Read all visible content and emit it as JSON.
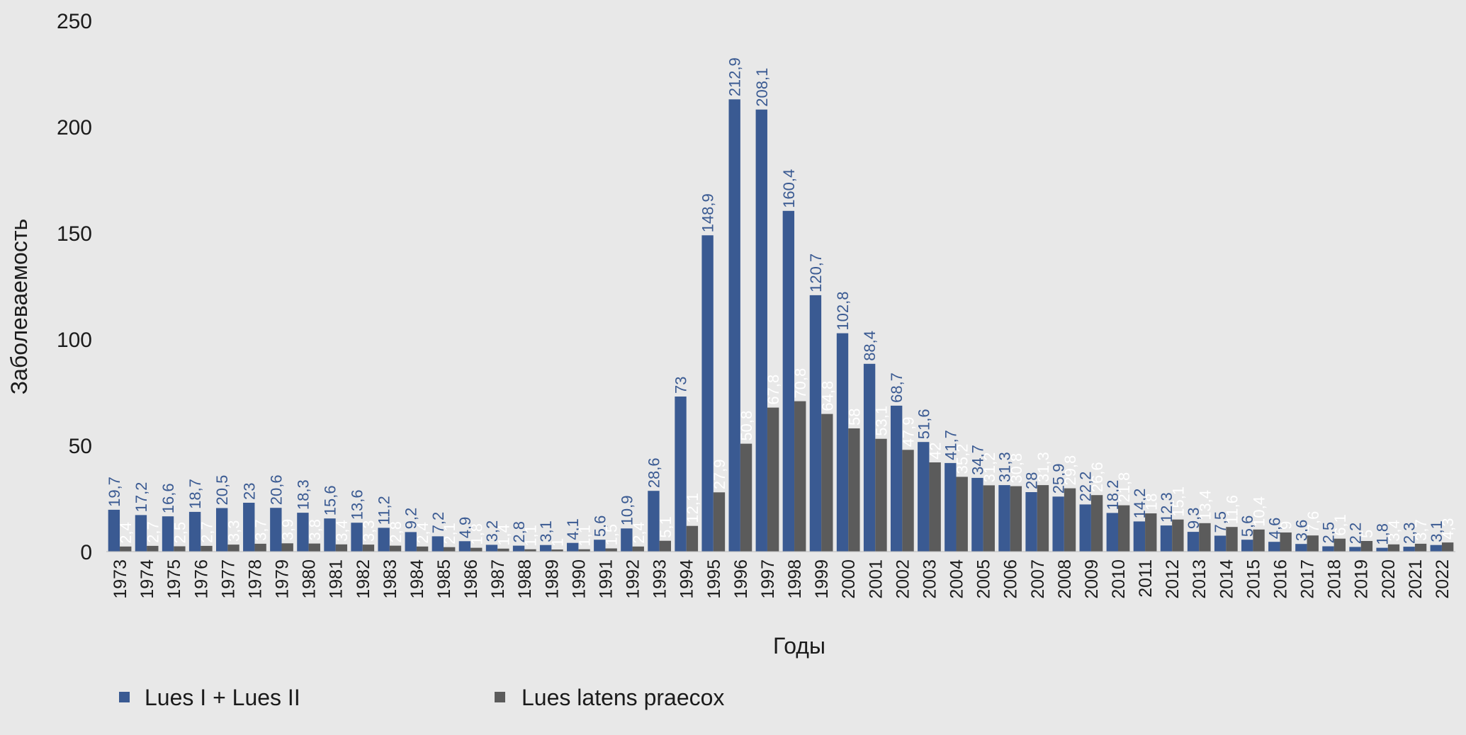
{
  "chart_data": {
    "type": "bar",
    "title": "",
    "xlabel": "Годы",
    "ylabel": "Заболеваемость",
    "ylim": [
      0,
      250
    ],
    "yticks": [
      0,
      50,
      100,
      150,
      200,
      250
    ],
    "grid": false,
    "legend_position": "bottom-left",
    "categories": [
      "1973",
      "1974",
      "1975",
      "1976",
      "1977",
      "1978",
      "1979",
      "1980",
      "1981",
      "1982",
      "1983",
      "1984",
      "1985",
      "1986",
      "1987",
      "1988",
      "1989",
      "1990",
      "1991",
      "1992",
      "1993",
      "1994",
      "1995",
      "1996",
      "1997",
      "1998",
      "1999",
      "2000",
      "2001",
      "2002",
      "2003",
      "2004",
      "2005",
      "2006",
      "2007",
      "2008",
      "2009",
      "2010",
      "2011",
      "2012",
      "2013",
      "2014",
      "2015",
      "2016",
      "2017",
      "2018",
      "2019",
      "2020",
      "2021",
      "2022"
    ],
    "series": [
      {
        "name": "Lues I + Lues II",
        "color": "#3a5a92",
        "label_color": "#3a5a92",
        "values": [
          19.7,
          17.2,
          16.6,
          18.7,
          20.5,
          23,
          20.6,
          18.3,
          15.6,
          13.6,
          11.2,
          9.2,
          7.2,
          4.9,
          3.2,
          2.8,
          3.1,
          4.1,
          5.6,
          10.9,
          28.6,
          73,
          148.9,
          212.9,
          208.1,
          160.4,
          120.7,
          102.8,
          88.4,
          68.7,
          51.6,
          41.7,
          34.7,
          31.3,
          28,
          25.9,
          22.2,
          18.2,
          14.2,
          12.3,
          9.3,
          7.5,
          5.6,
          4.6,
          3.6,
          2.5,
          2.2,
          1.8,
          2.3,
          3.1
        ],
        "labels": [
          "19,7",
          "17,2",
          "16,6",
          "18,7",
          "20,5",
          "23",
          "20,6",
          "18,3",
          "15,6",
          "13,6",
          "11,2",
          "9,2",
          "7,2",
          "4,9",
          "3,2",
          "2,8",
          "3,1",
          "4,1",
          "5,6",
          "10,9",
          "28,6",
          "73",
          "148,9",
          "212,9",
          "208,1",
          "160,4",
          "120,7",
          "102,8",
          "88,4",
          "68,7",
          "51,6",
          "41,7",
          "34,7",
          "31,3",
          "28",
          "25,9",
          "22,2",
          "18,2",
          "14,2",
          "12,3",
          "9,3",
          "7,5",
          "5,6",
          "4,6",
          "3,6",
          "2,5",
          "2,2",
          "1,8",
          "2,3",
          "3,1"
        ]
      },
      {
        "name": "Lues latens praecox",
        "color": "#5b5b5b",
        "label_color": "#ffffff",
        "values": [
          2.4,
          2.7,
          2.5,
          2.7,
          3.3,
          3.7,
          3.9,
          3.8,
          3.4,
          3.3,
          2.8,
          2.4,
          2.1,
          1.8,
          1.4,
          1.1,
          1,
          1.1,
          1.5,
          2.4,
          5.1,
          12.1,
          27.9,
          50.8,
          67.8,
          70.8,
          64.8,
          58,
          53.1,
          47.9,
          42,
          35.2,
          31.2,
          30.8,
          31.3,
          29.8,
          26.6,
          21.8,
          18,
          15.1,
          13.4,
          11.6,
          10.4,
          9,
          7.6,
          6.1,
          5,
          3.4,
          3.7,
          4.3
        ],
        "labels": [
          "2,4",
          "2,7",
          "2,5",
          "2,7",
          "3,3",
          "3,7",
          "3,9",
          "3,8",
          "3,4",
          "3,3",
          "2,8",
          "2,4",
          "2,1",
          "1,8",
          "1,4",
          "1,1",
          "1",
          "1,1",
          "1,5",
          "2,4",
          "5,1",
          "12,1",
          "27,9",
          "50,8",
          "67,8",
          "70,8",
          "64,8",
          "58",
          "53,1",
          "47,9",
          "42",
          "35,2",
          "31,2",
          "30,8",
          "31,3",
          "29,8",
          "26,6",
          "21,8",
          "18",
          "15,1",
          "13,4",
          "11,6",
          "10,4",
          "9",
          "7,6",
          "6,1",
          "5",
          "3,4",
          "3,7",
          "4,3"
        ]
      }
    ]
  }
}
